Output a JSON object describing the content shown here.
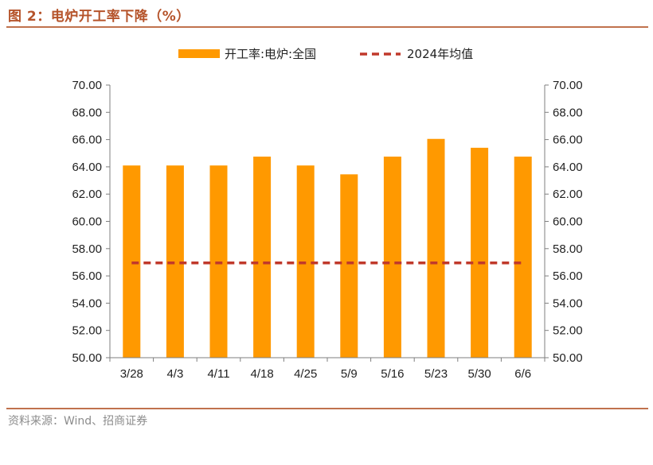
{
  "figure": {
    "title": "图 2：电炉开工率下降（%）",
    "source": "资料来源：Wind、招商证券"
  },
  "colors": {
    "bar": "#FF9900",
    "reference_line": "#C0392B",
    "axis": "#7f7f7f",
    "accent": "#B5532A"
  },
  "chart_data": {
    "type": "bar",
    "title": "电炉开工率下降（%）",
    "categories": [
      "3/28",
      "4/3",
      "4/11",
      "4/18",
      "4/25",
      "5/9",
      "5/16",
      "5/23",
      "5/30",
      "6/6"
    ],
    "series": [
      {
        "name": "开工率:电炉:全国",
        "values": [
          64.1,
          64.1,
          64.1,
          64.75,
          64.1,
          63.45,
          64.75,
          66.05,
          65.4,
          64.75
        ]
      }
    ],
    "reference_line": {
      "name": "2024年均值",
      "value": 56.95,
      "style": "dashed"
    },
    "ylim": [
      50,
      70
    ],
    "yticks": [
      "50.00",
      "52.00",
      "54.00",
      "56.00",
      "58.00",
      "60.00",
      "62.00",
      "64.00",
      "66.00",
      "68.00",
      "70.00"
    ],
    "y2lim": [
      50,
      70
    ],
    "y2ticks": [
      "50.00",
      "52.00",
      "54.00",
      "56.00",
      "58.00",
      "60.00",
      "62.00",
      "64.00",
      "66.00",
      "68.00",
      "70.00"
    ],
    "xlabel": "",
    "ylabel": "",
    "legend_position": "top-center",
    "grid": false
  }
}
